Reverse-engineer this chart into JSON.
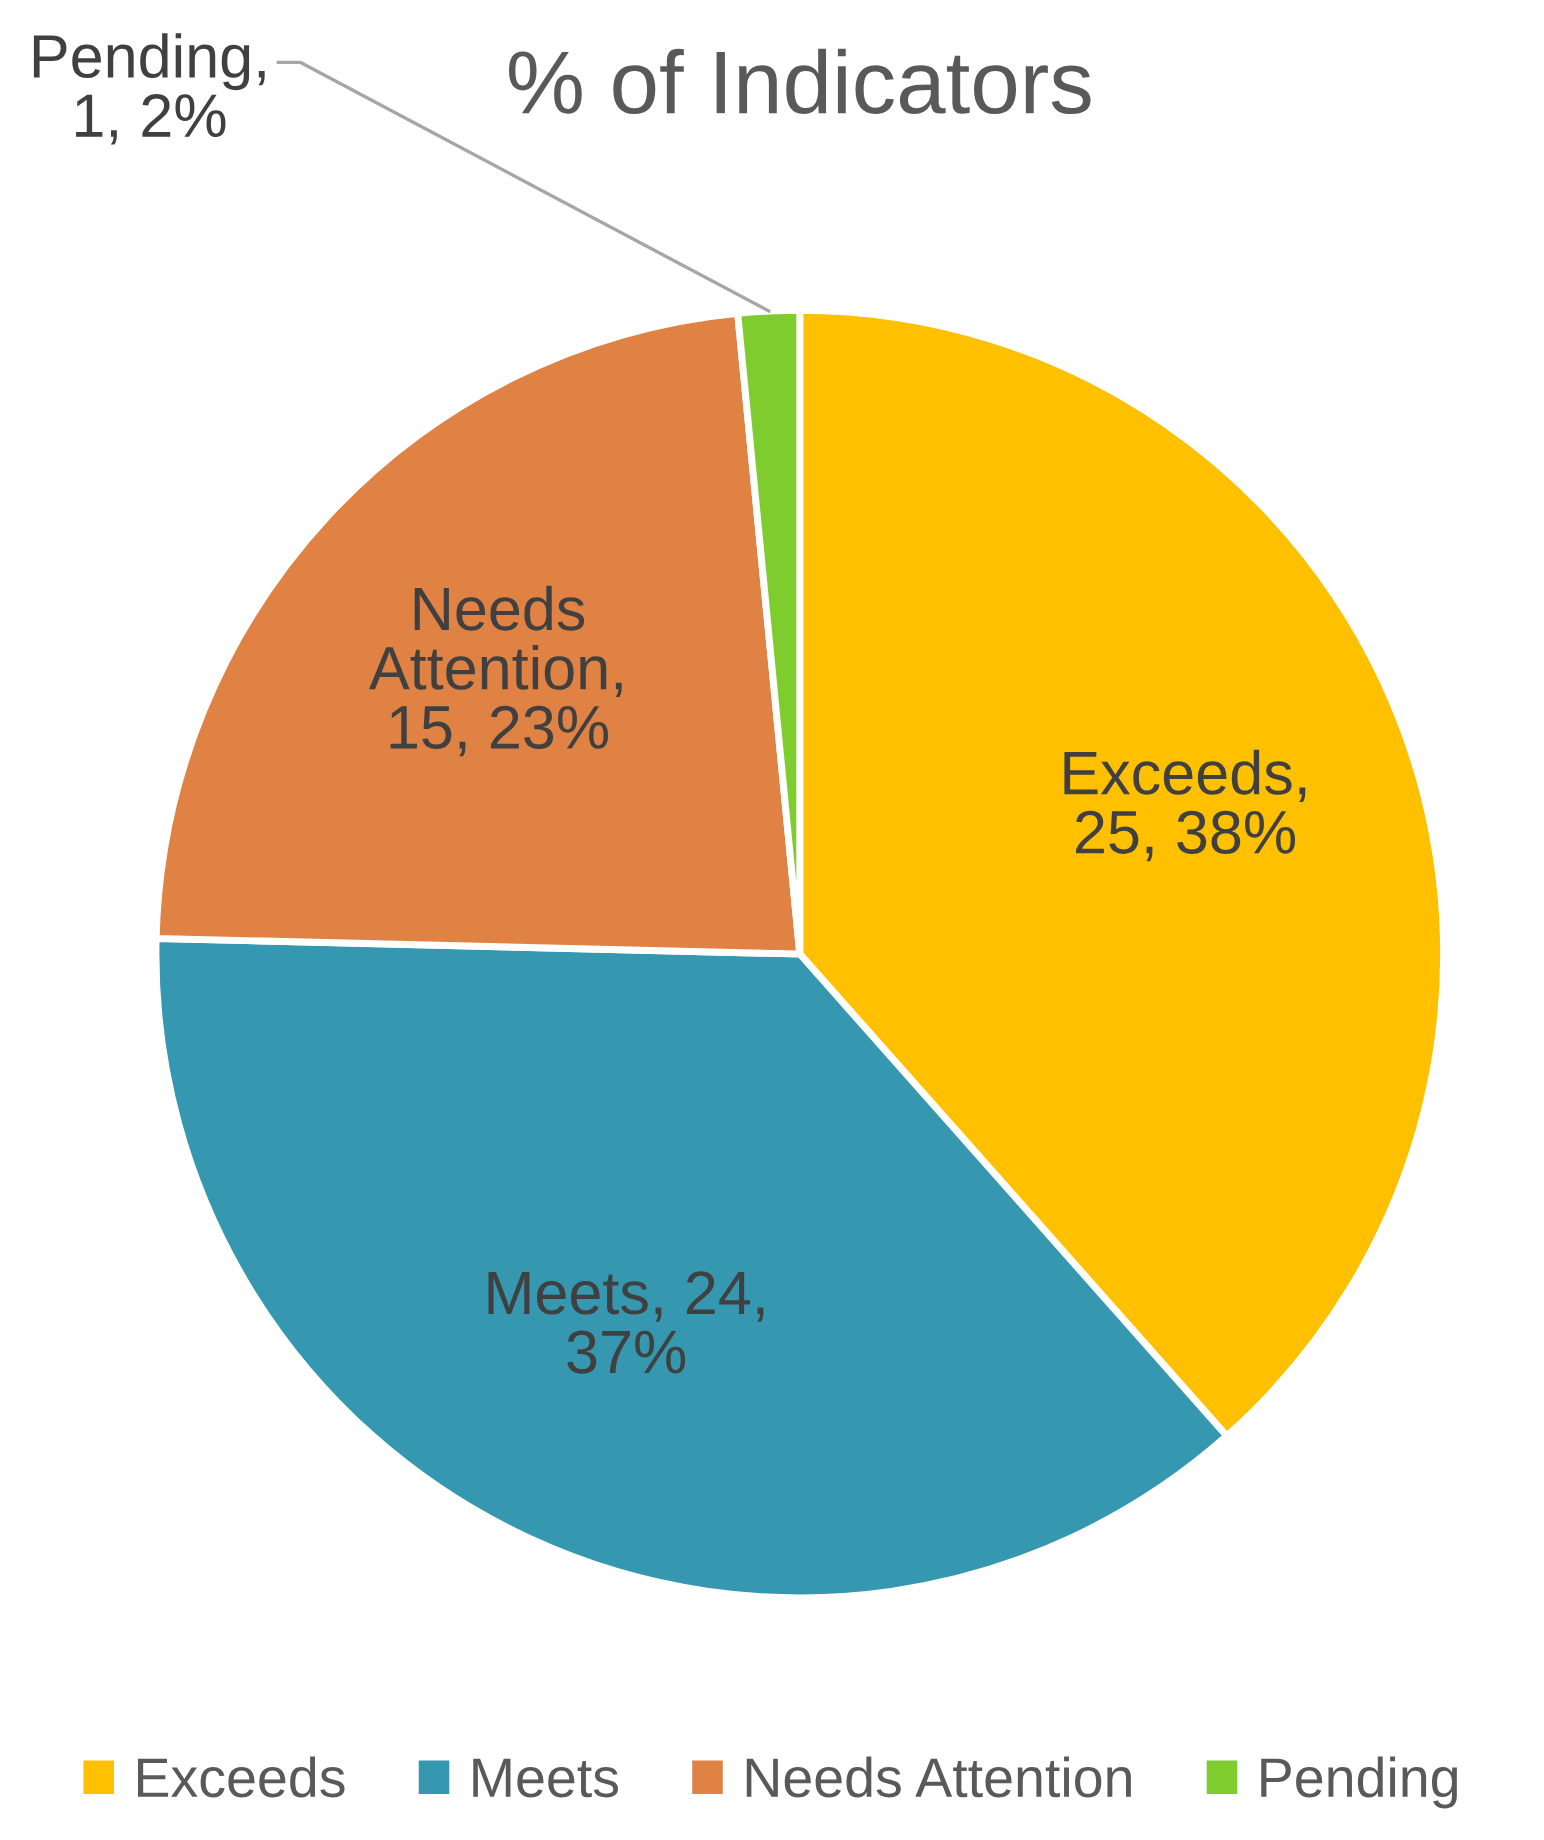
{
  "chart_data": {
    "type": "pie",
    "title": "% of Indicators",
    "categories": [
      "Exceeds",
      "Meets",
      "Needs Attention",
      "Pending"
    ],
    "values": [
      25,
      24,
      15,
      1
    ],
    "colors": [
      "#ffc000",
      "#3598b0",
      "#e08244",
      "#7ecc2e"
    ],
    "value_labels": [
      "Exceeds,\n25, 38%",
      "Meets, 24,\n37%",
      "Needs\nAttention,\n15, 23%",
      "Pending,\n1, 2%"
    ],
    "legend": "bottom"
  }
}
